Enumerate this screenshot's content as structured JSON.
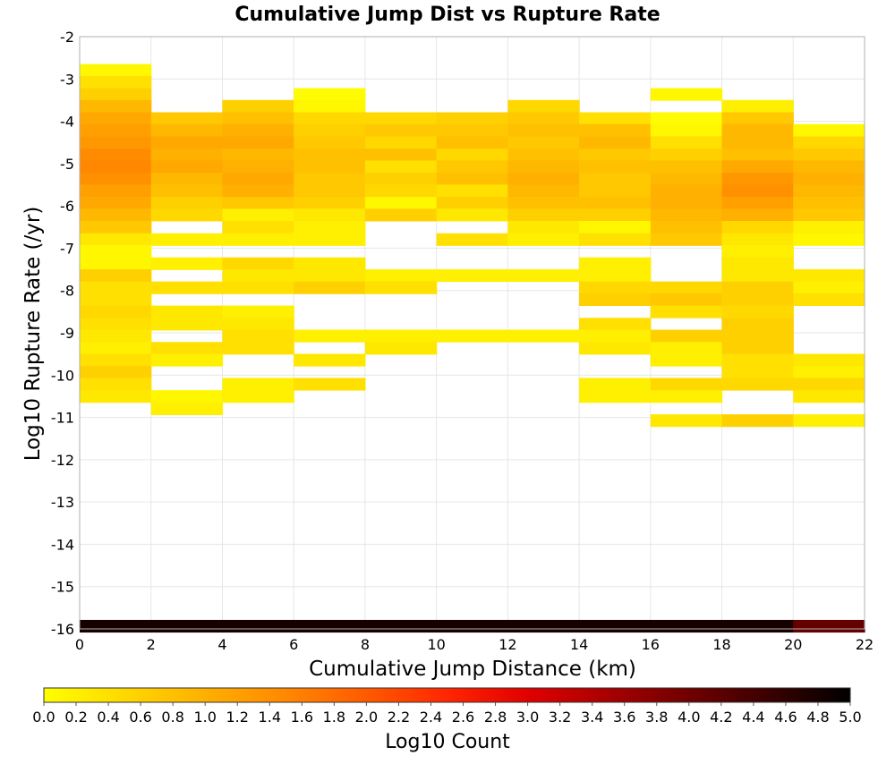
{
  "chart_data": {
    "type": "heatmap",
    "title": "Cumulative Jump Dist vs Rupture Rate",
    "xlabel": "Cumulative Jump Distance (km)",
    "ylabel": "Log10 Rupture Rate (/yr)",
    "xlim": [
      0,
      22
    ],
    "ylim": [
      -16,
      -2
    ],
    "x_ticks": [
      "0",
      "2",
      "4",
      "6",
      "8",
      "10",
      "12",
      "14",
      "16",
      "18",
      "20",
      "22"
    ],
    "y_ticks": [
      "-2",
      "-3",
      "-4",
      "-5",
      "-6",
      "-7",
      "-8",
      "-9",
      "-10",
      "-11",
      "-12",
      "-13",
      "-14",
      "-15",
      "-16"
    ],
    "grid": true,
    "x_bins": [
      1,
      3,
      5,
      7,
      9,
      11,
      13,
      15,
      17,
      19,
      21
    ],
    "x_bin_width": 2,
    "y_bin_height": 0.2857,
    "colorbar": {
      "label": "Log10 Count",
      "range": [
        0,
        5
      ],
      "ticks": [
        "0.0",
        "0.2",
        "0.4",
        "0.6",
        "0.8",
        "1.0",
        "1.2",
        "1.4",
        "1.6",
        "1.8",
        "2.0",
        "2.2",
        "2.4",
        "2.6",
        "2.8",
        "3.0",
        "3.2",
        "3.4",
        "3.6",
        "3.8",
        "4.0",
        "4.2",
        "4.4",
        "4.6",
        "4.8",
        "5.0"
      ],
      "colors": [
        "#ffff00",
        "#ffd800",
        "#ffb000",
        "#ff8800",
        "#ff5a00",
        "#ff2600",
        "#e00000",
        "#a80000",
        "#700000",
        "#3a0000",
        "#000000"
      ]
    },
    "columns": [
      {
        "x": 1,
        "cells": [
          [
            -2.79,
            0.1
          ],
          [
            -3.07,
            0.4
          ],
          [
            -3.36,
            0.6
          ],
          [
            -3.64,
            0.9
          ],
          [
            -3.93,
            1.1
          ],
          [
            -4.21,
            1.2
          ],
          [
            -4.5,
            1.3
          ],
          [
            -4.79,
            1.45
          ],
          [
            -5.07,
            1.5
          ],
          [
            -5.36,
            1.4
          ],
          [
            -5.64,
            1.2
          ],
          [
            -5.93,
            1.1
          ],
          [
            -6.21,
            0.9
          ],
          [
            -6.5,
            0.7
          ],
          [
            -6.79,
            0.3
          ],
          [
            -7.07,
            0.1
          ],
          [
            -7.36,
            0.1
          ],
          [
            -7.64,
            0.6
          ],
          [
            -7.93,
            0.4
          ],
          [
            -8.21,
            0.4
          ],
          [
            -8.5,
            0.5
          ],
          [
            -8.79,
            0.4
          ],
          [
            -9.07,
            0.3
          ],
          [
            -9.36,
            0.2
          ],
          [
            -9.64,
            0.4
          ],
          [
            -9.93,
            0.6
          ],
          [
            -10.21,
            0.4
          ],
          [
            -10.5,
            0.3
          ],
          [
            -15.93,
            4.8
          ]
        ]
      },
      {
        "x": 3,
        "cells": [
          [
            -3.93,
            0.7
          ],
          [
            -4.21,
            0.9
          ],
          [
            -4.5,
            1.1
          ],
          [
            -4.79,
            1.0
          ],
          [
            -5.07,
            1.1
          ],
          [
            -5.36,
            0.9
          ],
          [
            -5.64,
            0.8
          ],
          [
            -5.93,
            0.6
          ],
          [
            -6.21,
            0.5
          ],
          [
            -6.79,
            0.2
          ],
          [
            -7.36,
            0.2
          ],
          [
            -7.93,
            0.4
          ],
          [
            -8.5,
            0.3
          ],
          [
            -8.79,
            0.3
          ],
          [
            -9.36,
            0.4
          ],
          [
            -9.64,
            0.2
          ],
          [
            -10.5,
            0.1
          ],
          [
            -10.79,
            0.2
          ],
          [
            -15.93,
            4.8
          ]
        ]
      },
      {
        "x": 5,
        "cells": [
          [
            -3.64,
            0.6
          ],
          [
            -3.93,
            0.8
          ],
          [
            -4.21,
            1.0
          ],
          [
            -4.5,
            1.1
          ],
          [
            -4.79,
            0.9
          ],
          [
            -5.07,
            1.0
          ],
          [
            -5.36,
            1.1
          ],
          [
            -5.64,
            1.0
          ],
          [
            -5.93,
            0.7
          ],
          [
            -6.21,
            0.2
          ],
          [
            -6.5,
            0.4
          ],
          [
            -6.79,
            0.2
          ],
          [
            -7.36,
            0.5
          ],
          [
            -7.64,
            0.3
          ],
          [
            -7.93,
            0.4
          ],
          [
            -8.5,
            0.2
          ],
          [
            -8.79,
            0.3
          ],
          [
            -9.07,
            0.4
          ],
          [
            -9.36,
            0.4
          ],
          [
            -10.21,
            0.2
          ],
          [
            -10.5,
            0.2
          ],
          [
            -15.93,
            4.8
          ]
        ]
      },
      {
        "x": 7,
        "cells": [
          [
            -3.36,
            0.05
          ],
          [
            -3.64,
            0.1
          ],
          [
            -3.93,
            0.5
          ],
          [
            -4.21,
            0.6
          ],
          [
            -4.5,
            0.7
          ],
          [
            -4.79,
            0.8
          ],
          [
            -5.07,
            0.8
          ],
          [
            -5.36,
            0.7
          ],
          [
            -5.64,
            0.7
          ],
          [
            -5.93,
            0.6
          ],
          [
            -6.21,
            0.3
          ],
          [
            -6.5,
            0.2
          ],
          [
            -6.79,
            0.2
          ],
          [
            -7.36,
            0.3
          ],
          [
            -7.64,
            0.3
          ],
          [
            -7.93,
            0.6
          ],
          [
            -9.07,
            0.2
          ],
          [
            -9.64,
            0.3
          ],
          [
            -10.21,
            0.4
          ],
          [
            -15.93,
            4.8
          ]
        ]
      },
      {
        "x": 9,
        "cells": [
          [
            -3.93,
            0.5
          ],
          [
            -4.21,
            0.7
          ],
          [
            -4.5,
            0.5
          ],
          [
            -4.79,
            0.8
          ],
          [
            -5.07,
            0.4
          ],
          [
            -5.36,
            0.6
          ],
          [
            -5.64,
            0.5
          ],
          [
            -5.93,
            0.1
          ],
          [
            -6.21,
            0.6
          ],
          [
            -7.64,
            0.2
          ],
          [
            -7.93,
            0.4
          ],
          [
            -9.07,
            0.2
          ],
          [
            -9.36,
            0.3
          ],
          [
            -15.93,
            4.8
          ]
        ]
      },
      {
        "x": 11,
        "cells": [
          [
            -3.93,
            0.6
          ],
          [
            -4.21,
            0.7
          ],
          [
            -4.5,
            0.8
          ],
          [
            -4.79,
            0.5
          ],
          [
            -5.07,
            0.7
          ],
          [
            -5.36,
            0.8
          ],
          [
            -5.64,
            0.4
          ],
          [
            -5.93,
            0.6
          ],
          [
            -6.21,
            0.3
          ],
          [
            -6.79,
            0.4
          ],
          [
            -7.64,
            0.2
          ],
          [
            -9.07,
            0.2
          ],
          [
            -15.93,
            4.8
          ]
        ]
      },
      {
        "x": 13,
        "cells": [
          [
            -3.64,
            0.5
          ],
          [
            -3.93,
            0.7
          ],
          [
            -4.21,
            0.8
          ],
          [
            -4.5,
            0.7
          ],
          [
            -4.79,
            0.8
          ],
          [
            -5.07,
            0.9
          ],
          [
            -5.36,
            1.0
          ],
          [
            -5.64,
            0.9
          ],
          [
            -5.93,
            0.8
          ],
          [
            -6.21,
            0.6
          ],
          [
            -6.5,
            0.3
          ],
          [
            -6.79,
            0.2
          ],
          [
            -7.64,
            0.2
          ],
          [
            -9.07,
            0.2
          ],
          [
            -15.93,
            4.8
          ]
        ]
      },
      {
        "x": 15,
        "cells": [
          [
            -3.93,
            0.4
          ],
          [
            -4.21,
            0.8
          ],
          [
            -4.5,
            0.9
          ],
          [
            -4.79,
            0.7
          ],
          [
            -5.07,
            0.8
          ],
          [
            -5.36,
            0.7
          ],
          [
            -5.64,
            0.7
          ],
          [
            -5.93,
            0.8
          ],
          [
            -6.21,
            0.6
          ],
          [
            -6.5,
            0.1
          ],
          [
            -6.79,
            0.4
          ],
          [
            -7.36,
            0.2
          ],
          [
            -7.64,
            0.2
          ],
          [
            -7.93,
            0.5
          ],
          [
            -8.21,
            0.6
          ],
          [
            -8.79,
            0.4
          ],
          [
            -9.07,
            0.2
          ],
          [
            -9.36,
            0.3
          ],
          [
            -10.21,
            0.2
          ],
          [
            -10.5,
            0.2
          ],
          [
            -15.93,
            4.8
          ]
        ]
      },
      {
        "x": 17,
        "cells": [
          [
            -3.36,
            0.1
          ],
          [
            -3.93,
            0.05
          ],
          [
            -4.21,
            0.1
          ],
          [
            -4.5,
            0.4
          ],
          [
            -4.79,
            0.6
          ],
          [
            -5.07,
            0.8
          ],
          [
            -5.36,
            0.9
          ],
          [
            -5.64,
            1.0
          ],
          [
            -5.93,
            1.0
          ],
          [
            -6.21,
            0.9
          ],
          [
            -6.5,
            0.8
          ],
          [
            -6.79,
            0.7
          ],
          [
            -7.93,
            0.5
          ],
          [
            -8.21,
            0.7
          ],
          [
            -8.5,
            0.4
          ],
          [
            -9.07,
            0.6
          ],
          [
            -9.36,
            0.2
          ],
          [
            -9.64,
            0.2
          ],
          [
            -10.21,
            0.5
          ],
          [
            -10.5,
            0.2
          ],
          [
            -11.07,
            0.3
          ],
          [
            -15.93,
            4.8
          ]
        ]
      },
      {
        "x": 19,
        "cells": [
          [
            -3.64,
            0.2
          ],
          [
            -3.93,
            0.7
          ],
          [
            -4.21,
            0.9
          ],
          [
            -4.5,
            0.9
          ],
          [
            -4.79,
            0.8
          ],
          [
            -5.07,
            1.1
          ],
          [
            -5.36,
            1.3
          ],
          [
            -5.64,
            1.4
          ],
          [
            -5.93,
            1.2
          ],
          [
            -6.21,
            1.0
          ],
          [
            -6.5,
            0.5
          ],
          [
            -6.79,
            0.3
          ],
          [
            -7.07,
            0.2
          ],
          [
            -7.36,
            0.3
          ],
          [
            -7.64,
            0.3
          ],
          [
            -7.93,
            0.6
          ],
          [
            -8.21,
            0.6
          ],
          [
            -8.5,
            0.5
          ],
          [
            -8.79,
            0.6
          ],
          [
            -9.07,
            0.6
          ],
          [
            -9.36,
            0.6
          ],
          [
            -9.64,
            0.4
          ],
          [
            -9.93,
            0.4
          ],
          [
            -10.21,
            0.5
          ],
          [
            -11.07,
            0.6
          ],
          [
            -15.93,
            4.8
          ]
        ]
      },
      {
        "x": 21,
        "cells": [
          [
            -4.21,
            0.1
          ],
          [
            -4.5,
            0.5
          ],
          [
            -4.79,
            0.7
          ],
          [
            -5.07,
            0.9
          ],
          [
            -5.36,
            1.0
          ],
          [
            -5.64,
            0.9
          ],
          [
            -5.93,
            0.8
          ],
          [
            -6.21,
            0.7
          ],
          [
            -6.5,
            0.2
          ],
          [
            -6.79,
            0.1
          ],
          [
            -7.64,
            0.3
          ],
          [
            -7.93,
            0.2
          ],
          [
            -8.21,
            0.4
          ],
          [
            -9.64,
            0.3
          ],
          [
            -9.93,
            0.2
          ],
          [
            -10.21,
            0.5
          ],
          [
            -10.5,
            0.3
          ],
          [
            -11.07,
            0.2
          ],
          [
            -15.93,
            4.1
          ]
        ]
      }
    ]
  }
}
